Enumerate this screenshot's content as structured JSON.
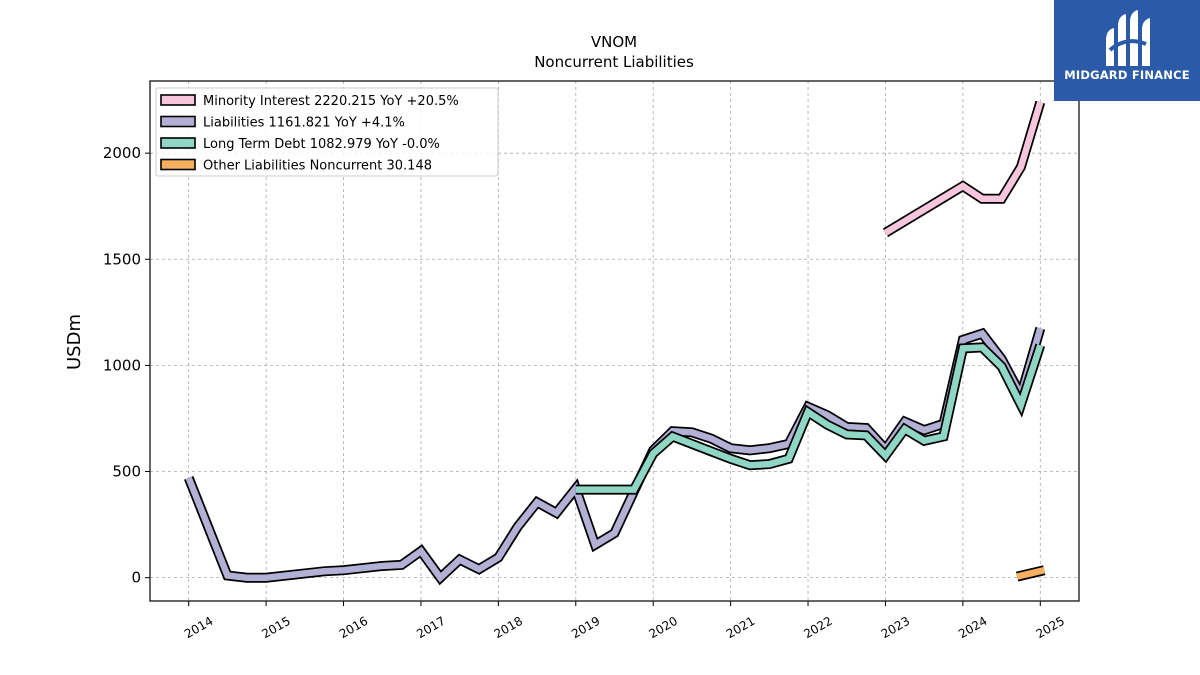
{
  "brand": {
    "name": "MIDGARD FINANCE",
    "logo_icon": "midgard-logo-icon",
    "bg_color": "#2a5aa8"
  },
  "chart_data": {
    "type": "line",
    "title": "VNOM",
    "subtitle": "Noncurrent  Liabilities",
    "xlabel": "",
    "ylabel": "USDm",
    "xlim": [
      2013.5,
      2025.5
    ],
    "ylim": [
      -110,
      2340
    ],
    "x_ticks": [
      "2014",
      "2015",
      "2016",
      "2017",
      "2018",
      "2019",
      "2020",
      "2021",
      "2022",
      "2023",
      "2024",
      "2025"
    ],
    "y_ticks": [
      "0",
      "500",
      "1000",
      "1500",
      "2000"
    ],
    "grid": true,
    "legend_position": "top-left",
    "series": [
      {
        "name": "Minority Interest",
        "legend": "Minority Interest  2220.215 YoY +20.5%",
        "color": "#f7c6dc",
        "points": [
          [
            2023.0,
            1625
          ],
          [
            2024.0,
            1845
          ],
          [
            2024.25,
            1785
          ],
          [
            2024.5,
            1785
          ],
          [
            2024.75,
            1935
          ],
          [
            2025.0,
            2240
          ]
        ]
      },
      {
        "name": "Liabilities",
        "legend": "Liabilities  1161.821 YoY +4.1%",
        "color": "#b3b0d6",
        "points": [
          [
            2014.0,
            470
          ],
          [
            2014.5,
            10
          ],
          [
            2014.75,
            0
          ],
          [
            2015.0,
            0
          ],
          [
            2015.75,
            30
          ],
          [
            2016.0,
            35
          ],
          [
            2016.5,
            55
          ],
          [
            2016.75,
            60
          ],
          [
            2017.0,
            125
          ],
          [
            2017.25,
            0
          ],
          [
            2017.5,
            85
          ],
          [
            2017.75,
            40
          ],
          [
            2018.0,
            95
          ],
          [
            2018.25,
            240
          ],
          [
            2018.5,
            355
          ],
          [
            2018.75,
            305
          ],
          [
            2019.0,
            420
          ],
          [
            2019.25,
            155
          ],
          [
            2019.5,
            210
          ],
          [
            2020.0,
            600
          ],
          [
            2020.25,
            690
          ],
          [
            2020.5,
            685
          ],
          [
            2020.75,
            655
          ],
          [
            2021.0,
            610
          ],
          [
            2021.25,
            600
          ],
          [
            2021.5,
            610
          ],
          [
            2021.75,
            630
          ],
          [
            2022.0,
            805
          ],
          [
            2022.25,
            765
          ],
          [
            2022.5,
            710
          ],
          [
            2022.75,
            705
          ],
          [
            2023.0,
            605
          ],
          [
            2023.25,
            735
          ],
          [
            2023.5,
            695
          ],
          [
            2023.75,
            725
          ],
          [
            2024.0,
            1120
          ],
          [
            2024.25,
            1150
          ],
          [
            2024.5,
            1030
          ],
          [
            2024.75,
            860
          ],
          [
            2025.0,
            1175
          ]
        ]
      },
      {
        "name": "Long Term Debt",
        "legend": "Long Term Debt  1082.979 YoY -0.0%",
        "color": "#8fd6c4",
        "points": [
          [
            2019.0,
            415
          ],
          [
            2019.75,
            415
          ],
          [
            2020.0,
            585
          ],
          [
            2020.25,
            665
          ],
          [
            2020.75,
            595
          ],
          [
            2021.0,
            560
          ],
          [
            2021.25,
            530
          ],
          [
            2021.5,
            535
          ],
          [
            2021.75,
            560
          ],
          [
            2022.0,
            780
          ],
          [
            2022.25,
            720
          ],
          [
            2022.5,
            675
          ],
          [
            2022.75,
            670
          ],
          [
            2023.0,
            575
          ],
          [
            2023.25,
            700
          ],
          [
            2023.5,
            645
          ],
          [
            2023.75,
            665
          ],
          [
            2024.0,
            1080
          ],
          [
            2024.25,
            1085
          ],
          [
            2024.5,
            995
          ],
          [
            2024.75,
            815
          ],
          [
            2025.0,
            1095
          ]
        ]
      },
      {
        "name": "Other Liabilities Noncurrent",
        "legend": "Other Liabilities Noncurrent  30.148",
        "color": "#f7b060",
        "points": [
          [
            2024.7,
            5
          ],
          [
            2025.05,
            35
          ]
        ]
      }
    ]
  }
}
